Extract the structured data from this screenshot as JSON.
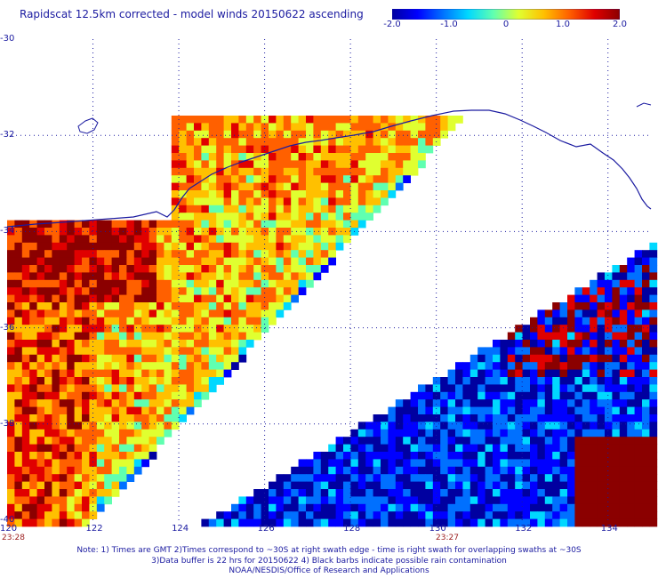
{
  "title": "Rapidscat 12.5km corrected - model winds 20150622 ascending",
  "colorbar": {
    "min": -2.0,
    "max": 2.0,
    "ticks": [
      "-2.0",
      "-1.0",
      "0",
      "1.0",
      "2.0"
    ],
    "colors": [
      "#0000a0",
      "#0000ff",
      "#0070ff",
      "#00d8ff",
      "#60ffb0",
      "#e0ff30",
      "#ffc000",
      "#ff6000",
      "#e00000",
      "#8b0000"
    ]
  },
  "map": {
    "lon_range": [
      120,
      135
    ],
    "lat_range": [
      -40,
      -30
    ],
    "lon_ticks": [
      "120",
      "122",
      "124",
      "126",
      "128",
      "130",
      "132",
      "134"
    ],
    "lat_ticks": [
      "-30",
      "-32",
      "-34",
      "-36",
      "-38",
      "-40"
    ],
    "grid": "dotted",
    "coastline_color": "#1a1aa0"
  },
  "swath_times": [
    "23:28",
    "23:27"
  ],
  "notes": [
    "Note: 1) Times are GMT 2)Times correspond to ~30S at right swath edge - time is right swath for overlapping swaths at ~30S",
    "3)Data buffer is 22 hrs for 20150622 4) Black barbs indicate possible rain contamination",
    "NOAA/NESDIS/Office of Research and Applications"
  ]
}
